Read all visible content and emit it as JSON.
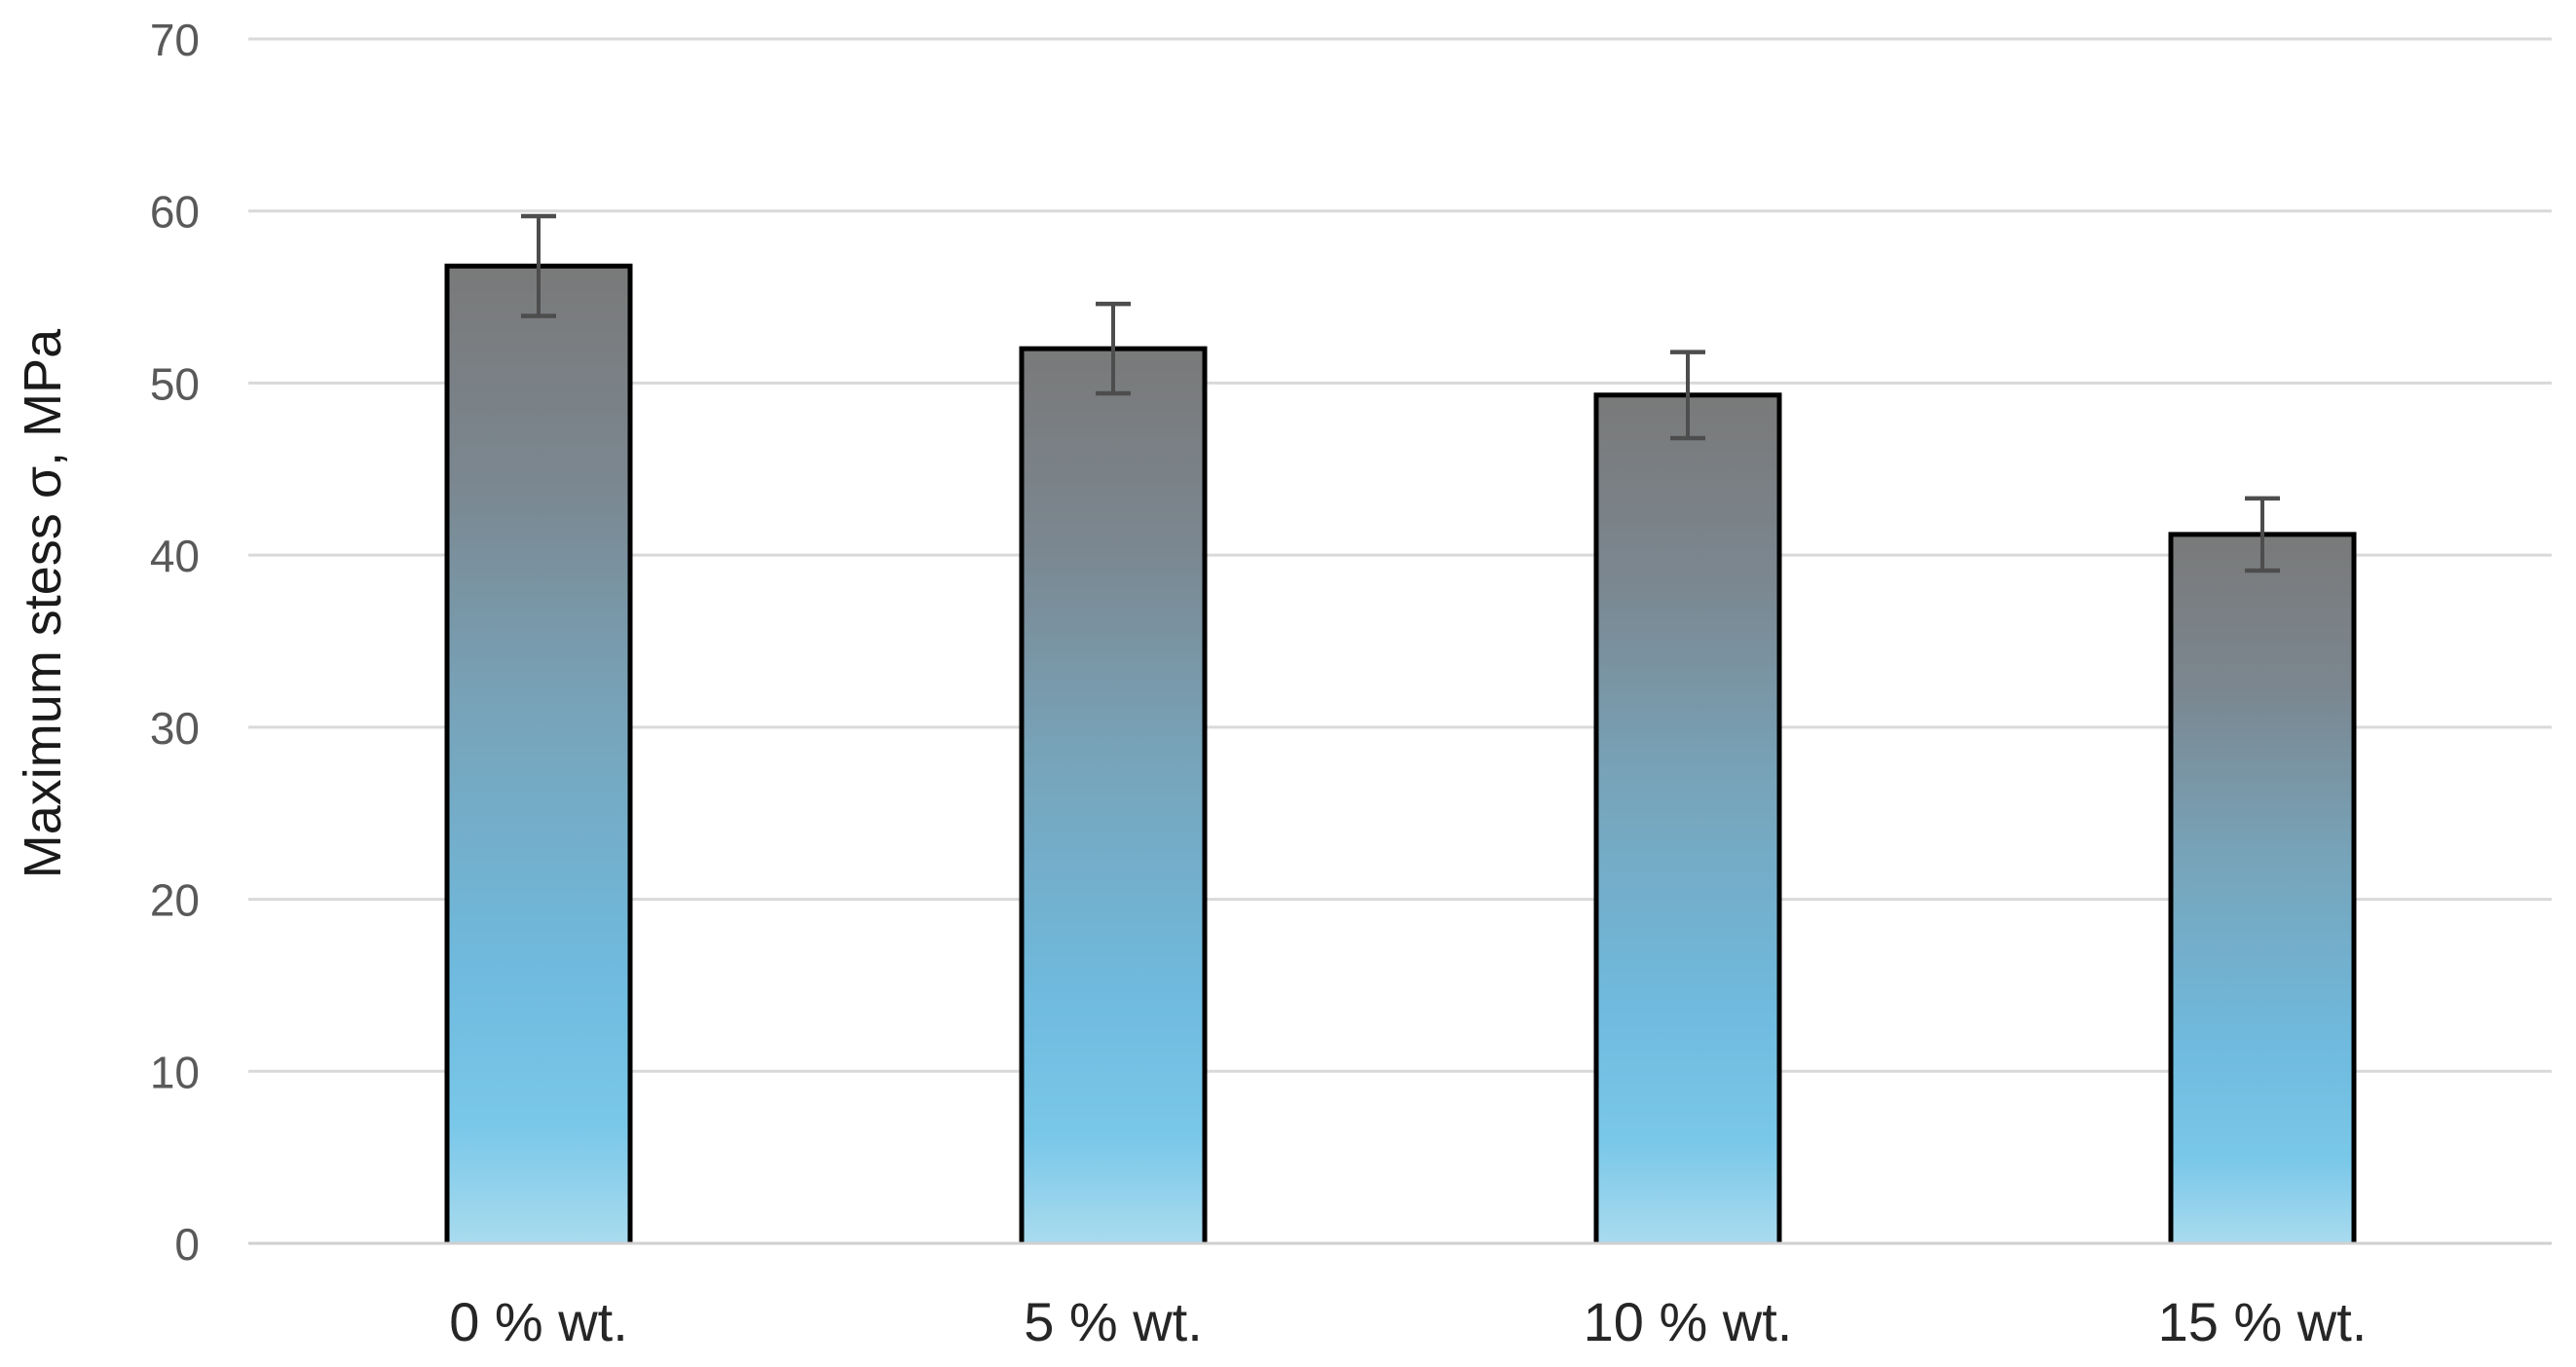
{
  "chart_data": {
    "type": "bar",
    "title": "",
    "ylabel": "Maximum stess σ, MPa",
    "xlabel": "",
    "categories": [
      "0 % wt.",
      "5 % wt.",
      "10 % wt.",
      "15 % wt."
    ],
    "values": [
      56.8,
      52.0,
      49.3,
      41.2
    ],
    "error_bars": [
      2.9,
      2.6,
      2.5,
      2.1
    ],
    "ylim": [
      0,
      70
    ],
    "yticks": [
      0,
      10,
      20,
      30,
      40,
      50,
      60,
      70
    ],
    "grid": true,
    "legend": false,
    "style": {
      "background": "#ffffff",
      "gridline_color": "#d9d9d9",
      "baseline_color": "#d0d0d0",
      "bar_border_color": "#000000",
      "bar_gradient_stops": [
        {
          "offset": 0.0,
          "color": "#797979"
        },
        {
          "offset": 0.22,
          "color": "#7b8790"
        },
        {
          "offset": 0.46,
          "color": "#77a4ba"
        },
        {
          "offset": 0.72,
          "color": "#6fbade"
        },
        {
          "offset": 0.88,
          "color": "#79c7e9"
        },
        {
          "offset": 1.0,
          "color": "#a9dbee"
        }
      ],
      "error_bar_color": "#4d4d4d",
      "ytick_label_color": "#595959",
      "category_label_color": "#262626",
      "ylabel_color": "#1a1a1a"
    }
  }
}
